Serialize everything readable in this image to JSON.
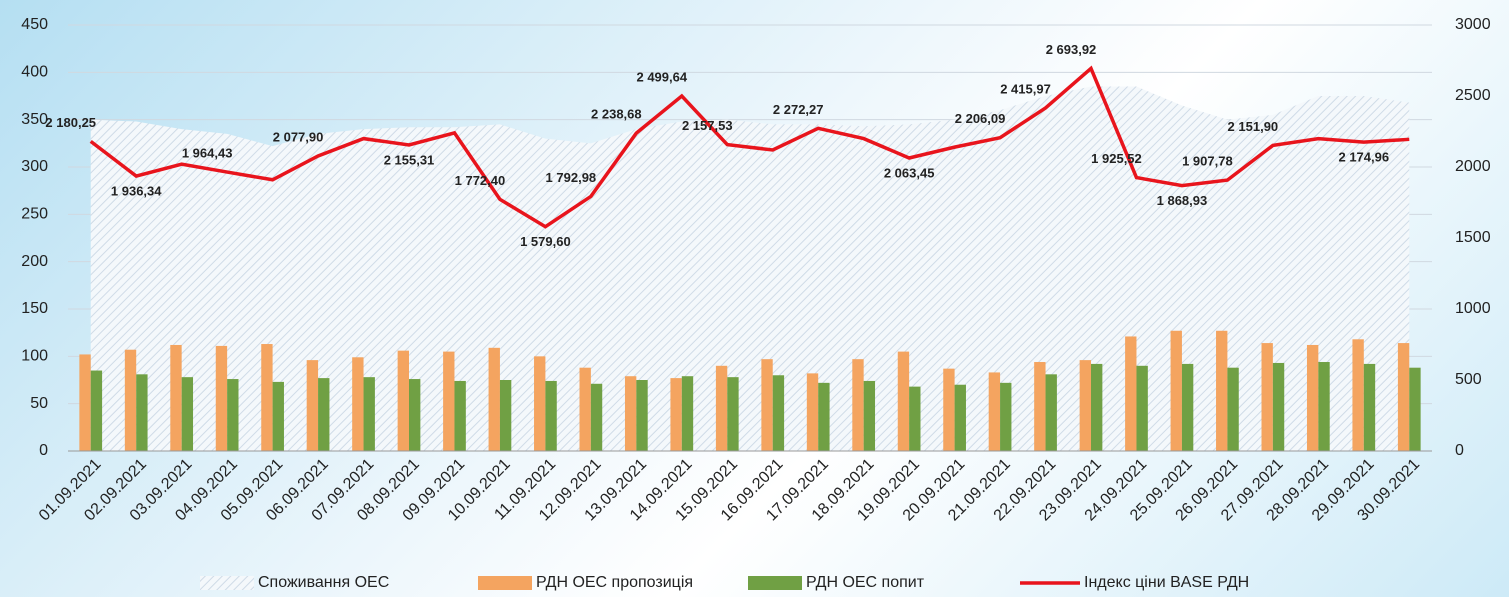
{
  "chart_data": {
    "type": "combo",
    "categories": [
      "01.09.2021",
      "02.09.2021",
      "03.09.2021",
      "04.09.2021",
      "05.09.2021",
      "06.09.2021",
      "07.09.2021",
      "08.09.2021",
      "09.09.2021",
      "10.09.2021",
      "11.09.2021",
      "12.09.2021",
      "13.09.2021",
      "14.09.2021",
      "15.09.2021",
      "16.09.2021",
      "17.09.2021",
      "18.09.2021",
      "19.09.2021",
      "20.09.2021",
      "21.09.2021",
      "22.09.2021",
      "23.09.2021",
      "24.09.2021",
      "25.09.2021",
      "26.09.2021",
      "27.09.2021",
      "28.09.2021",
      "29.09.2021",
      "30.09.2021"
    ],
    "series": [
      {
        "name": "Споживання ОЕС",
        "type": "area",
        "color": "#dde7f1",
        "values": [
          350,
          348,
          340,
          335,
          322,
          335,
          340,
          342,
          342,
          345,
          330,
          325,
          340,
          348,
          350,
          345,
          345,
          343,
          345,
          350,
          360,
          375,
          385,
          385,
          365,
          350,
          355,
          375,
          375,
          368
        ]
      },
      {
        "name": "РДН ОЕС пропозиція",
        "type": "bar",
        "color": "#f4a460",
        "values": [
          102,
          107,
          112,
          111,
          113,
          96,
          99,
          106,
          105,
          109,
          100,
          88,
          79,
          77,
          90,
          97,
          82,
          97,
          105,
          87,
          83,
          94,
          96,
          121,
          127,
          127,
          114,
          112,
          118,
          114
        ]
      },
      {
        "name": "РДН ОЕС попит",
        "type": "bar",
        "color": "#70a044",
        "values": [
          85,
          81,
          78,
          76,
          73,
          77,
          78,
          76,
          74,
          75,
          74,
          71,
          75,
          79,
          78,
          80,
          72,
          74,
          68,
          70,
          72,
          81,
          92,
          90,
          92,
          88,
          93,
          94,
          92,
          88
        ]
      },
      {
        "name": "Індекс ціни BASE РДН",
        "type": "line",
        "axis": "y2",
        "color": "#e8141c",
        "values": [
          2180.25,
          1936.34,
          2020,
          1964.43,
          1910,
          2077.9,
          2200,
          2155.31,
          2240,
          1772.4,
          1579.6,
          1792.98,
          2238.68,
          2499.64,
          2157.53,
          2120,
          2272.27,
          2200,
          2063.45,
          2140,
          2206.09,
          2415.97,
          2693.92,
          1925.52,
          1868.93,
          1907.78,
          2151.9,
          2200,
          2174.96,
          2195
        ],
        "value_labels": [
          "2 180,25",
          "1 936,34",
          null,
          "1 964,43",
          null,
          "2 077,90",
          null,
          "2 155,31",
          null,
          "1 772,40",
          "1 579,60",
          "1 792,98",
          "2 238,68",
          "2 499,64",
          "2 157,53",
          null,
          "2 272,27",
          null,
          "2 063,45",
          null,
          "2 206,09",
          "2 415,97",
          "2 693,92",
          "1 925,52",
          "1 868,93",
          "1 907,78",
          "2 151,90",
          null,
          "2 174,96",
          null
        ]
      }
    ],
    "ylim": [
      0,
      450
    ],
    "yticks": [
      0,
      50,
      100,
      150,
      200,
      250,
      300,
      350,
      400,
      450
    ],
    "y2lim": [
      0,
      3000
    ],
    "y2ticks": [
      0,
      500,
      1000,
      1500,
      2000,
      2500,
      3000
    ],
    "grid": true,
    "legend": "bottom"
  }
}
